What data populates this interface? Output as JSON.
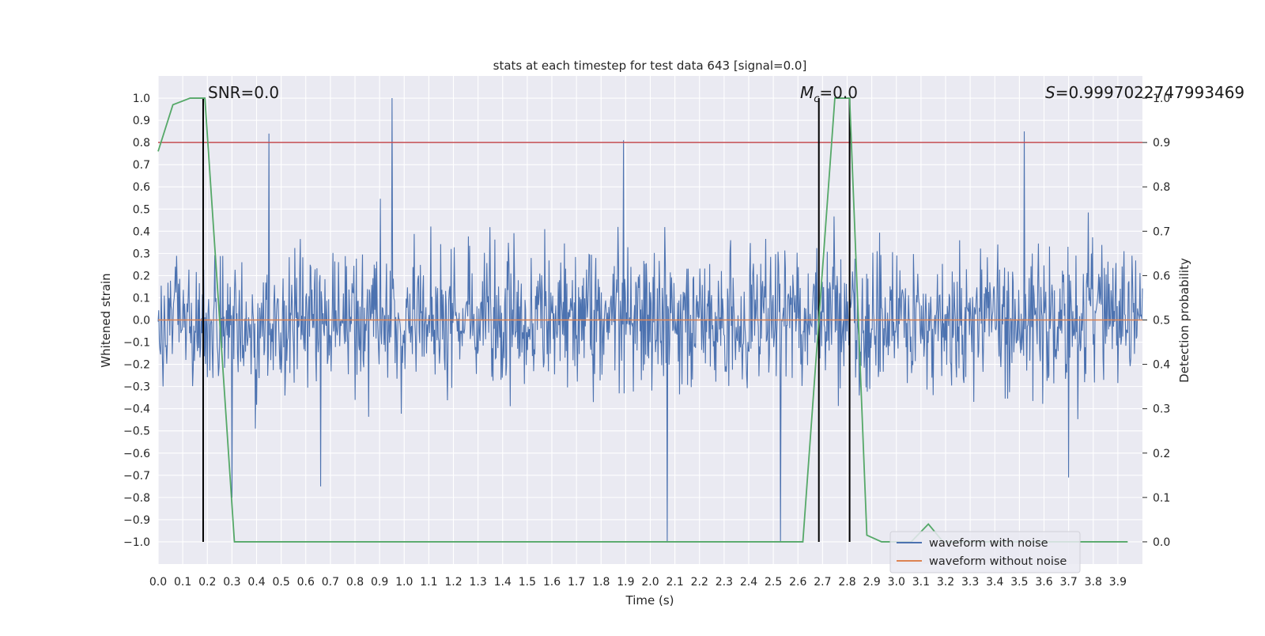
{
  "chart_data": {
    "type": "line",
    "title": "stats at each timestep for test data 643 [signal=0.0]",
    "xlabel": "Time (s)",
    "ylabel_left": "Whitened strain",
    "ylabel_right": "Detection probability",
    "xlim": [
      0.0,
      4.0
    ],
    "ylim_left": [
      -1.1,
      1.1
    ],
    "ylim_right": [
      -0.05,
      1.05
    ],
    "grid": true,
    "x_ticks": [
      "0.0",
      "0.1",
      "0.2",
      "0.3",
      "0.4",
      "0.5",
      "0.6",
      "0.7",
      "0.8",
      "0.9",
      "1.0",
      "1.1",
      "1.2",
      "1.3",
      "1.4",
      "1.5",
      "1.6",
      "1.7",
      "1.8",
      "1.9",
      "2.0",
      "2.1",
      "2.2",
      "2.3",
      "2.4",
      "2.5",
      "2.6",
      "2.7",
      "2.8",
      "2.9",
      "3.0",
      "3.1",
      "3.2",
      "3.3",
      "3.4",
      "3.5",
      "3.6",
      "3.7",
      "3.8",
      "3.9"
    ],
    "y_ticks_left": [
      "1.0",
      "0.9",
      "0.8",
      "0.7",
      "0.6",
      "0.5",
      "0.4",
      "0.3",
      "0.2",
      "0.1",
      "0.0",
      "−0.1",
      "−0.2",
      "−0.3",
      "−0.4",
      "−0.5",
      "−0.6",
      "−0.7",
      "−0.8",
      "−0.9",
      "−1.0"
    ],
    "y_ticks_right": [
      "1.0",
      "0.9",
      "0.8",
      "0.7",
      "0.6",
      "0.5",
      "0.4",
      "0.3",
      "0.2",
      "0.1",
      "0.0"
    ],
    "threshold": {
      "axis": "right",
      "value": 0.9,
      "color": "#c44e52"
    },
    "noise_series": {
      "name": "waveform with noise",
      "color": "#4c72b0",
      "samples": 1600,
      "seed": 643,
      "spikes": [
        {
          "x": 0.45,
          "y": 0.84
        },
        {
          "x": 0.95,
          "y": 1.0
        },
        {
          "x": 1.89,
          "y": 0.81
        },
        {
          "x": 3.52,
          "y": 0.85
        },
        {
          "x": 2.07,
          "y": -1.0
        },
        {
          "x": 2.53,
          "y": -1.0
        },
        {
          "x": 0.66,
          "y": -0.75
        },
        {
          "x": 0.3,
          "y": -0.8
        },
        {
          "x": 3.7,
          "y": -0.71
        }
      ]
    },
    "clean_series": {
      "name": "waveform without noise",
      "color": "#dd8452",
      "value": 0.0
    },
    "probability_series": {
      "name": "detection probability",
      "color": "#55a868",
      "x": [
        0.0,
        0.06,
        0.13,
        0.19,
        0.31,
        0.37,
        2.62,
        2.75,
        2.81,
        2.88,
        2.94,
        3.06,
        3.13,
        3.19,
        3.94
      ],
      "y": [
        0.88,
        0.985,
        1.0,
        1.0,
        0.0,
        0.0,
        0.0,
        1.0,
        1.0,
        0.015,
        0.0,
        0.0,
        0.04,
        0.0,
        0.0
      ]
    },
    "event_lines": [
      0.183,
      2.685,
      2.81
    ],
    "annotations": {
      "snr": "SNR=0.0",
      "mc_symbol": "M",
      "mc_subscript": "c",
      "mc_value": "=0.0",
      "s_symbol": "S",
      "s_value": "=0.9997022747993469"
    },
    "legend": [
      "waveform with noise",
      "waveform without noise"
    ]
  }
}
